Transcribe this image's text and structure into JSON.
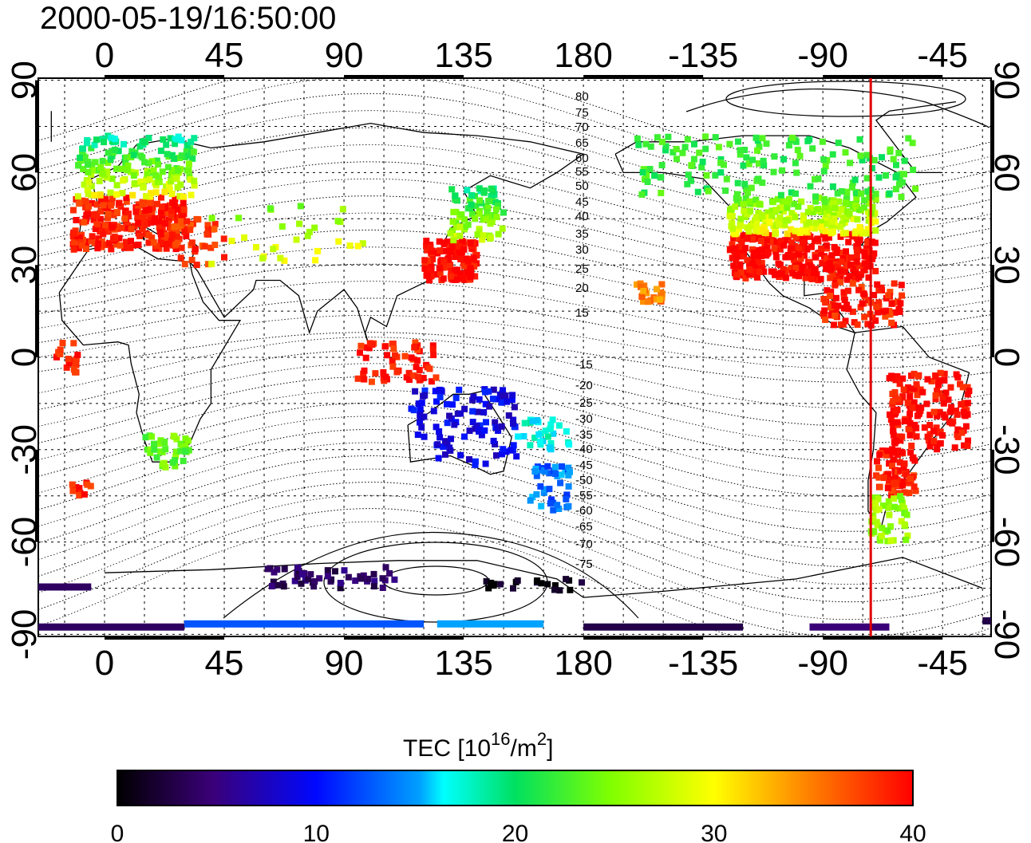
{
  "title": "2000-05-19/16:50:00",
  "map": {
    "lon_ticks": [
      "0",
      "45",
      "90",
      "135",
      "180",
      "-135",
      "-90",
      "-45"
    ],
    "lat_ticks": [
      "90",
      "60",
      "30",
      "0",
      "-30",
      "-60",
      "-90"
    ],
    "marker_lon": -72,
    "marker_color": "#e00000",
    "contour_labels": [
      "80",
      "75",
      "70",
      "65",
      "60",
      "55",
      "50",
      "45",
      "40",
      "35",
      "30",
      "25",
      "20",
      "15",
      "-15",
      "-20",
      "-25",
      "-30",
      "-35",
      "-40",
      "-45",
      "-50",
      "-55",
      "-60",
      "-65",
      "-70",
      "-75"
    ]
  },
  "colorbar": {
    "label_main": "TEC  [10",
    "label_exp1": "16",
    "label_mid": "/m",
    "label_exp2": "2",
    "label_end": "]",
    "ticks": [
      "0",
      "10",
      "20",
      "30",
      "40"
    ],
    "range": [
      0,
      40
    ],
    "colors": [
      "#000000",
      "#5000a0",
      "#0010ff",
      "#00ffff",
      "#00ff00",
      "#ffff00",
      "#ff8000",
      "#ff0000"
    ]
  }
}
